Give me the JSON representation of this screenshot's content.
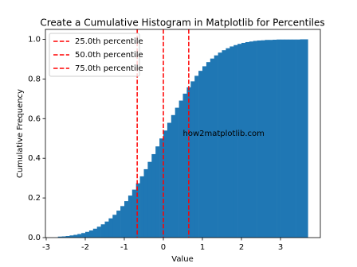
{
  "chart_data": {
    "type": "histogram",
    "title": "Create a Cumulative Histogram in Matplotlib for Percentiles",
    "xlabel": "Value",
    "ylabel": "Cumulative Frequency",
    "color": "#1f77b4",
    "bins": [
      -2.7,
      -2.6,
      -2.5,
      -2.4,
      -2.3,
      -2.2,
      -2.1,
      -2.0,
      -1.9,
      -1.8,
      -1.7,
      -1.6,
      -1.5,
      -1.4,
      -1.3,
      -1.2,
      -1.1,
      -1.0,
      -0.9,
      -0.8,
      -0.7,
      -0.6,
      -0.5,
      -0.4,
      -0.3,
      -0.2,
      -0.1,
      0.0,
      0.1,
      0.2,
      0.3,
      0.4,
      0.5,
      0.6,
      0.7,
      0.8,
      0.9,
      1.0,
      1.1,
      1.2,
      1.3,
      1.4,
      1.5,
      1.6,
      1.7,
      1.8,
      1.9,
      2.0,
      2.1,
      2.2,
      2.3,
      2.4,
      2.5,
      2.6,
      2.7,
      2.8,
      2.9,
      3.0,
      3.1,
      3.2,
      3.3,
      3.4,
      3.5,
      3.6,
      3.7
    ],
    "values": [
      0.005,
      0.006,
      0.008,
      0.011,
      0.014,
      0.018,
      0.023,
      0.029,
      0.036,
      0.045,
      0.055,
      0.067,
      0.081,
      0.097,
      0.115,
      0.136,
      0.159,
      0.184,
      0.212,
      0.242,
      0.274,
      0.309,
      0.345,
      0.382,
      0.421,
      0.46,
      0.5,
      0.54,
      0.579,
      0.618,
      0.655,
      0.691,
      0.726,
      0.758,
      0.788,
      0.816,
      0.841,
      0.864,
      0.885,
      0.903,
      0.919,
      0.933,
      0.945,
      0.955,
      0.964,
      0.971,
      0.977,
      0.982,
      0.986,
      0.989,
      0.992,
      0.994,
      0.995,
      0.997,
      0.997,
      0.998,
      0.999,
      0.999,
      0.999,
      0.999,
      0.999,
      0.999,
      1.0,
      1.0
    ],
    "percentiles": [
      {
        "name": "25.0th percentile",
        "value": -0.67,
        "color": "#ff0000"
      },
      {
        "name": "50.0th percentile",
        "value": 0.0,
        "color": "#ff0000"
      },
      {
        "name": "75.0th percentile",
        "value": 0.65,
        "color": "#ff0000"
      }
    ],
    "annotation": "how2matplotlib.com",
    "xlim": [
      -3.02,
      4.02
    ],
    "ylim": [
      0,
      1.05
    ],
    "xticks": [
      -3,
      -2,
      -1,
      0,
      1,
      2,
      3
    ],
    "yticks": [
      {
        "value": 0,
        "label": "0.0"
      },
      {
        "value": 0.2,
        "label": "0.2"
      },
      {
        "value": 0.4,
        "label": "0.4"
      },
      {
        "value": 0.6,
        "label": "0.6"
      },
      {
        "value": 0.8,
        "label": "0.8"
      },
      {
        "value": 1,
        "label": "1.0"
      }
    ],
    "legend": "upper left"
  }
}
